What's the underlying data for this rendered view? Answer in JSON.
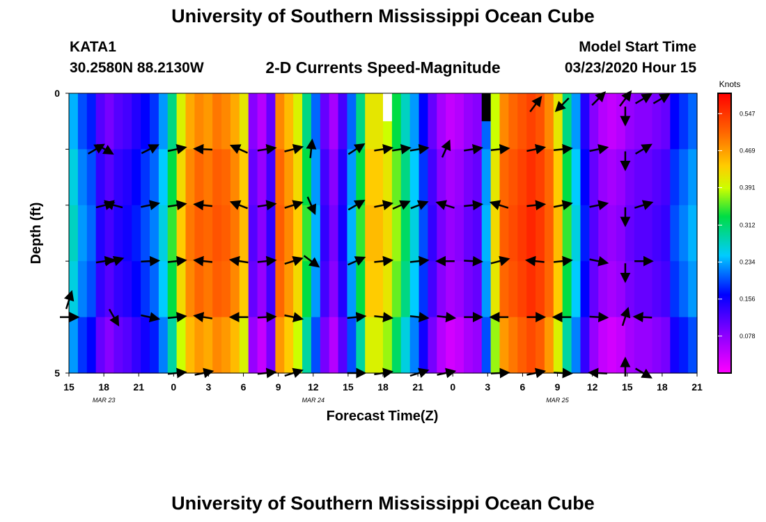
{
  "header": {
    "title": "University of Southern Mississippi Ocean Cube",
    "footer_title": "University of Southern Mississippi Ocean Cube",
    "station": "KATA1",
    "coords": "30.2580N 88.2130W",
    "subtitle": "2-D Currents Speed-Magnitude",
    "model_start_label": "Model Start Time",
    "model_start_value": "03/23/2020 Hour 15"
  },
  "chart_data": {
    "type": "heatmap",
    "title": "2-D Currents Speed-Magnitude",
    "xlabel": "Forecast Time(Z)",
    "ylabel": "Depth (ft)",
    "y_ticks": [
      "0",
      "5"
    ],
    "ylim": [
      0,
      5
    ],
    "x_tick_labels": [
      "15",
      "18",
      "21",
      "0",
      "3",
      "6",
      "9",
      "12",
      "15",
      "18",
      "21",
      "0",
      "3",
      "6",
      "9",
      "12",
      "15",
      "18",
      "21"
    ],
    "date_labels": [
      {
        "label": "MAR 23",
        "tick_index": 1
      },
      {
        "label": "MAR 24",
        "tick_index": 7
      },
      {
        "label": "MAR 25",
        "tick_index": 14
      }
    ],
    "colorbar": {
      "unit": "Knots",
      "ticks": [
        "0.547",
        "0.469",
        "0.391",
        "0.312",
        "0.234",
        "0.156",
        "0.078"
      ],
      "range": [
        0,
        0.59
      ]
    },
    "speed_by_hour": [
      0.25,
      0.21,
      0.19,
      0.13,
      0.11,
      0.13,
      0.14,
      0.16,
      0.18,
      0.2,
      0.24,
      0.3,
      0.37,
      0.42,
      0.44,
      0.43,
      0.45,
      0.44,
      0.42,
      0.38,
      0.1,
      0.07,
      0.12,
      0.44,
      0.41,
      0.37,
      0.3,
      0.22,
      0.12,
      0.08,
      0.14,
      0.22,
      0.3,
      0.38,
      0.38,
      0.36,
      0.32,
      0.28,
      0.24,
      0.18,
      0.12,
      0.08,
      0.06,
      0.07,
      0.09,
      0.1,
      0.22,
      0.36,
      0.44,
      0.46,
      0.48,
      0.5,
      0.48,
      0.44,
      0.38,
      0.3,
      0.24,
      0.16,
      0.1,
      0.07,
      0.06,
      0.07,
      0.09,
      0.1,
      0.1,
      0.11,
      0.12,
      0.18,
      0.2,
      0.22,
      0.24
    ],
    "vectors": [
      {
        "hour": 0,
        "depth": 3.7,
        "u": 0.3,
        "v": 0.95
      },
      {
        "hour": 0,
        "depth": 4.0,
        "u": 1,
        "v": 0
      },
      {
        "hour": 3,
        "depth": 1.0,
        "u": 0.85,
        "v": 0.5
      },
      {
        "hour": 4,
        "depth": 1.0,
        "u": 0.85,
        "v": -0.5
      },
      {
        "hour": 4,
        "depth": 2.0,
        "u": 0.97,
        "v": 0.25
      },
      {
        "hour": 5,
        "depth": 2.0,
        "u": -0.97,
        "v": 0.25
      },
      {
        "hour": 4,
        "depth": 3.0,
        "u": 0.97,
        "v": 0.15
      },
      {
        "hour": 5,
        "depth": 3.0,
        "u": 0.97,
        "v": 0.3
      },
      {
        "hour": 5,
        "depth": 4.0,
        "u": 0.5,
        "v": -0.87
      },
      {
        "hour": 9,
        "depth": 1.0,
        "u": 0.9,
        "v": 0.45
      },
      {
        "hour": 12,
        "depth": 1.0,
        "u": 0.97,
        "v": 0.2
      },
      {
        "hour": 15,
        "depth": 1.0,
        "u": -0.97,
        "v": 0.05
      },
      {
        "hour": 9,
        "depth": 2.0,
        "u": 0.97,
        "v": 0.2
      },
      {
        "hour": 12,
        "depth": 2.0,
        "u": 0.97,
        "v": 0.15
      },
      {
        "hour": 15,
        "depth": 2.0,
        "u": -0.97,
        "v": 0.1
      },
      {
        "hour": 9,
        "depth": 3.0,
        "u": 0.97,
        "v": 0.05
      },
      {
        "hour": 12,
        "depth": 3.0,
        "u": 0.97,
        "v": 0.1
      },
      {
        "hour": 15,
        "depth": 3.0,
        "u": -0.97,
        "v": 0.1
      },
      {
        "hour": 9,
        "depth": 4.0,
        "u": 0.97,
        "v": -0.2
      },
      {
        "hour": 12,
        "depth": 4.0,
        "u": 0.97,
        "v": 0.1
      },
      {
        "hour": 15,
        "depth": 4.0,
        "u": -0.97,
        "v": 0.15
      },
      {
        "hour": 12,
        "depth": 5.0,
        "u": 0.97,
        "v": 0.1
      },
      {
        "hour": 15,
        "depth": 5.0,
        "u": 0.97,
        "v": 0.2
      },
      {
        "hour": 19,
        "depth": 1.0,
        "u": -0.9,
        "v": 0.4
      },
      {
        "hour": 19,
        "depth": 2.0,
        "u": -0.9,
        "v": 0.35
      },
      {
        "hour": 19,
        "depth": 3.0,
        "u": -0.97,
        "v": 0.15
      },
      {
        "hour": 19,
        "depth": 4.0,
        "u": -0.97,
        "v": 0.0
      },
      {
        "hour": 22,
        "depth": 1.0,
        "u": 0.97,
        "v": 0.15
      },
      {
        "hour": 25,
        "depth": 1.0,
        "u": 0.97,
        "v": 0.25
      },
      {
        "hour": 27,
        "depth": 1.0,
        "u": 0.1,
        "v": 0.98
      },
      {
        "hour": 22,
        "depth": 2.0,
        "u": 0.97,
        "v": 0.15
      },
      {
        "hour": 25,
        "depth": 2.0,
        "u": 0.95,
        "v": 0.3
      },
      {
        "hour": 27,
        "depth": 2.0,
        "u": 0.4,
        "v": -0.92
      },
      {
        "hour": 22,
        "depth": 3.0,
        "u": 0.97,
        "v": 0.1
      },
      {
        "hour": 25,
        "depth": 3.0,
        "u": 0.95,
        "v": 0.3
      },
      {
        "hour": 27,
        "depth": 3.0,
        "u": 0.8,
        "v": -0.6
      },
      {
        "hour": 22,
        "depth": 4.0,
        "u": 0.97,
        "v": 0.05
      },
      {
        "hour": 25,
        "depth": 4.0,
        "u": 0.97,
        "v": -0.2
      },
      {
        "hour": 22,
        "depth": 5.0,
        "u": 0.97,
        "v": 0.1
      },
      {
        "hour": 25,
        "depth": 5.0,
        "u": 0.95,
        "v": 0.3
      },
      {
        "hour": 32,
        "depth": 1.0,
        "u": 0.85,
        "v": 0.55
      },
      {
        "hour": 35,
        "depth": 1.0,
        "u": 0.97,
        "v": 0.15
      },
      {
        "hour": 37,
        "depth": 1.0,
        "u": 0.97,
        "v": 0.15
      },
      {
        "hour": 32,
        "depth": 2.0,
        "u": 0.85,
        "v": 0.5
      },
      {
        "hour": 35,
        "depth": 2.0,
        "u": 0.97,
        "v": 0.2
      },
      {
        "hour": 37,
        "depth": 2.0,
        "u": 0.9,
        "v": 0.4
      },
      {
        "hour": 32,
        "depth": 3.0,
        "u": 0.9,
        "v": 0.4
      },
      {
        "hour": 35,
        "depth": 3.0,
        "u": 0.97,
        "v": 0.1
      },
      {
        "hour": 32,
        "depth": 4.0,
        "u": 0.97,
        "v": 0.1
      },
      {
        "hour": 35,
        "depth": 4.0,
        "u": 0.97,
        "v": -0.1
      },
      {
        "hour": 32,
        "depth": 5.0,
        "u": 0.97,
        "v": 0.0
      },
      {
        "hour": 35,
        "depth": 5.0,
        "u": 0.97,
        "v": 0.15
      },
      {
        "hour": 39,
        "depth": 1.0,
        "u": 0.97,
        "v": 0.15
      },
      {
        "hour": 39,
        "depth": 2.0,
        "u": 0.9,
        "v": 0.35
      },
      {
        "hour": 39,
        "depth": 3.0,
        "u": 0.97,
        "v": 0.1
      },
      {
        "hour": 39,
        "depth": 4.0,
        "u": 0.97,
        "v": -0.1
      },
      {
        "hour": 39,
        "depth": 5.0,
        "u": 0.97,
        "v": 0.3
      },
      {
        "hour": 42,
        "depth": 1.0,
        "u": 0.4,
        "v": 0.9
      },
      {
        "hour": 45,
        "depth": 1.0,
        "u": 0.97,
        "v": 0.15
      },
      {
        "hour": 48,
        "depth": 1.0,
        "u": 0.97,
        "v": 0.1
      },
      {
        "hour": 42,
        "depth": 2.0,
        "u": -0.95,
        "v": 0.3
      },
      {
        "hour": 45,
        "depth": 2.0,
        "u": 0.97,
        "v": 0.1
      },
      {
        "hour": 48,
        "depth": 2.0,
        "u": -0.95,
        "v": 0.3
      },
      {
        "hour": 42,
        "depth": 3.0,
        "u": -0.97,
        "v": 0.0
      },
      {
        "hour": 45,
        "depth": 3.0,
        "u": 0.97,
        "v": -0.05
      },
      {
        "hour": 48,
        "depth": 3.0,
        "u": 0.97,
        "v": 0.25
      },
      {
        "hour": 42,
        "depth": 4.0,
        "u": 0.97,
        "v": -0.1
      },
      {
        "hour": 45,
        "depth": 4.0,
        "u": 0.97,
        "v": 0.0
      },
      {
        "hour": 48,
        "depth": 4.0,
        "u": -0.97,
        "v": 0.0
      },
      {
        "hour": 42,
        "depth": 5.0,
        "u": 0.97,
        "v": 0.2
      },
      {
        "hour": 48,
        "depth": 5.0,
        "u": 0.97,
        "v": 0.05
      },
      {
        "hour": 52,
        "depth": 0.2,
        "u": 0.6,
        "v": 0.8
      },
      {
        "hour": 52,
        "depth": 1.0,
        "u": 0.97,
        "v": 0.2
      },
      {
        "hour": 55,
        "depth": 1.0,
        "u": 0.97,
        "v": 0.1
      },
      {
        "hour": 52,
        "depth": 2.0,
        "u": 0.97,
        "v": 0.1
      },
      {
        "hour": 55,
        "depth": 2.0,
        "u": 0.97,
        "v": 0.2
      },
      {
        "hour": 52,
        "depth": 3.0,
        "u": -0.97,
        "v": 0.1
      },
      {
        "hour": 55,
        "depth": 3.0,
        "u": 0.97,
        "v": 0.1
      },
      {
        "hour": 52,
        "depth": 4.0,
        "u": 0.97,
        "v": 0.0
      },
      {
        "hour": 55,
        "depth": 4.0,
        "u": -0.97,
        "v": 0.0
      },
      {
        "hour": 52,
        "depth": 5.0,
        "u": 0.97,
        "v": 0.2
      },
      {
        "hour": 55,
        "depth": 5.0,
        "u": 0.97,
        "v": -0.05
      },
      {
        "hour": 59,
        "depth": 0.1,
        "u": 0.7,
        "v": 0.7
      },
      {
        "hour": 59,
        "depth": 1.0,
        "u": 0.97,
        "v": 0.2
      },
      {
        "hour": 59,
        "depth": 2.0,
        "u": 0.97,
        "v": 0.2
      },
      {
        "hour": 59,
        "depth": 3.0,
        "u": 0.97,
        "v": -0.2
      },
      {
        "hour": 59,
        "depth": 4.0,
        "u": 0.97,
        "v": -0.05
      },
      {
        "hour": 59,
        "depth": 5.0,
        "u": -0.97,
        "v": 0.05
      },
      {
        "hour": 62,
        "depth": 0.1,
        "u": 0.6,
        "v": 0.8
      },
      {
        "hour": 62,
        "depth": 0.4,
        "u": 0.0,
        "v": -1
      },
      {
        "hour": 62,
        "depth": 1.2,
        "u": 0.0,
        "v": -1
      },
      {
        "hour": 62,
        "depth": 2.2,
        "u": 0.0,
        "v": -1
      },
      {
        "hour": 62,
        "depth": 3.2,
        "u": 0.0,
        "v": -1
      },
      {
        "hour": 62,
        "depth": 4.0,
        "u": 0.3,
        "v": 0.95
      },
      {
        "hour": 62,
        "depth": 4.9,
        "u": 0.0,
        "v": 1
      },
      {
        "hour": 64,
        "depth": 0.1,
        "u": 0.85,
        "v": 0.5
      },
      {
        "hour": 64,
        "depth": 1.0,
        "u": 0.85,
        "v": 0.5
      },
      {
        "hour": 64,
        "depth": 2.0,
        "u": 0.95,
        "v": 0.3
      },
      {
        "hour": 64,
        "depth": 3.0,
        "u": 0.97,
        "v": 0.0
      },
      {
        "hour": 64,
        "depth": 4.0,
        "u": -0.97,
        "v": 0.05
      },
      {
        "hour": 64,
        "depth": 5.0,
        "u": 0.85,
        "v": -0.5
      },
      {
        "hour": 55,
        "depth": 0.2,
        "u": -0.7,
        "v": -0.7
      },
      {
        "hour": 66,
        "depth": 0.1,
        "u": 0.85,
        "v": 0.5
      }
    ],
    "missing": [
      {
        "hour": 35,
        "depth_from": 0,
        "depth_to": 0.5,
        "type": "white"
      },
      {
        "hour": 46,
        "depth_from": 0,
        "depth_to": 0.5,
        "type": "black"
      }
    ]
  }
}
